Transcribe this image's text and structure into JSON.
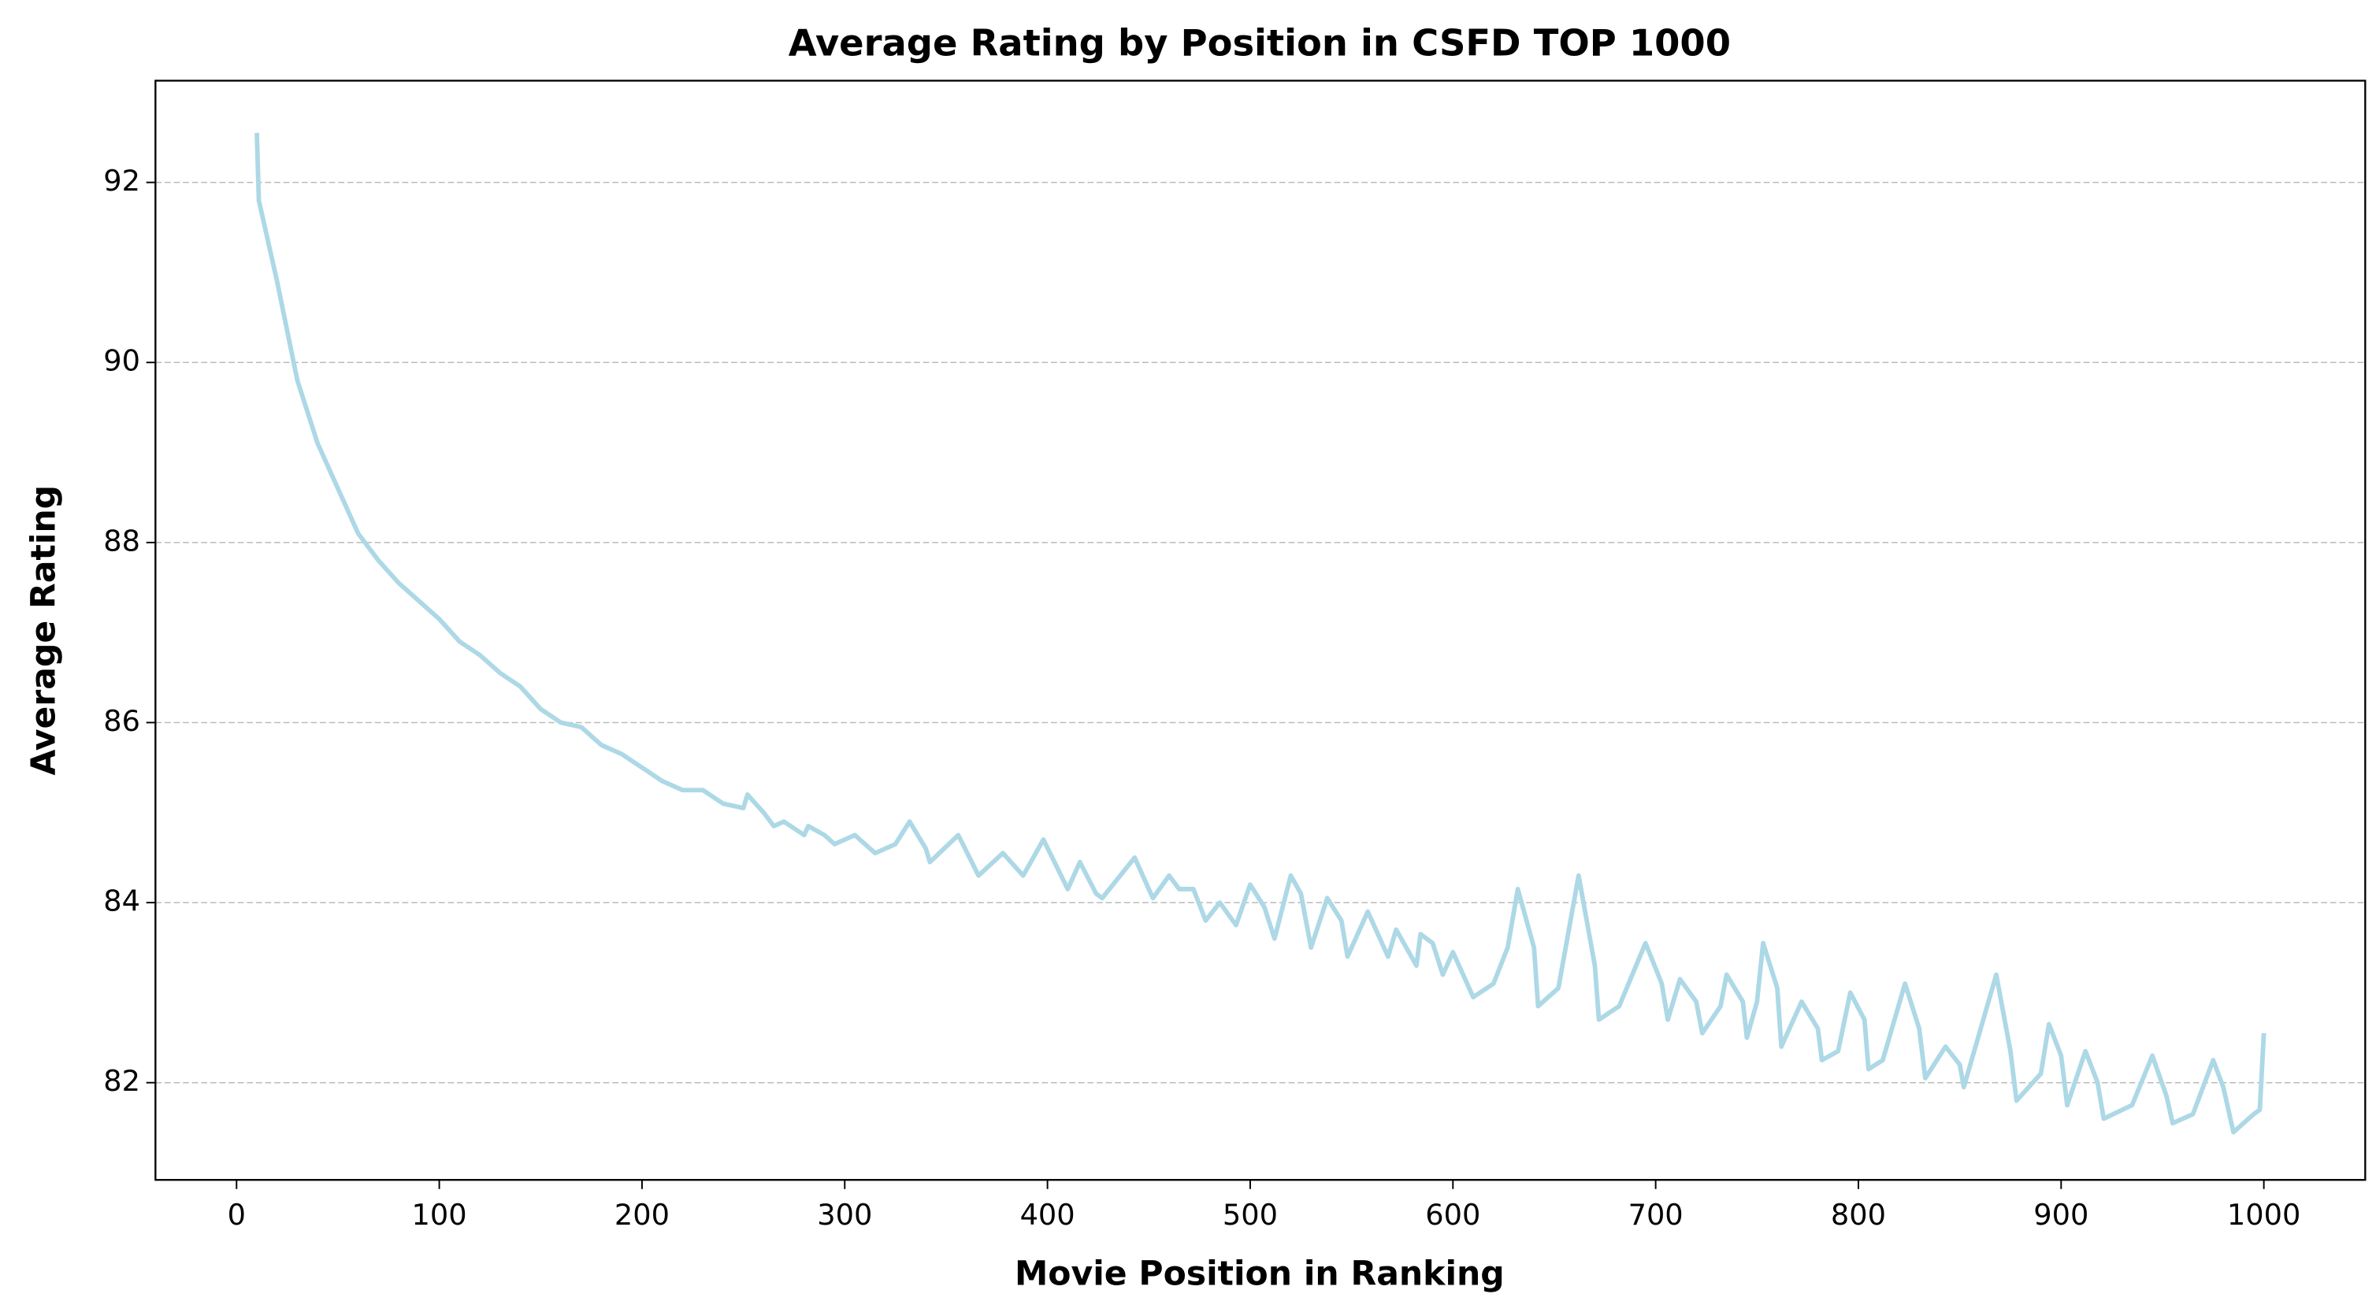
{
  "chart_data": {
    "type": "line",
    "title": "Average Rating by Position in CSFD TOP 1000",
    "x_label": "Movie Position in Ranking",
    "y_label": "Average Rating",
    "xlim": [
      -40,
      1050
    ],
    "ylim": [
      80.92,
      93.13
    ],
    "xticks": [
      0,
      100,
      200,
      300,
      400,
      500,
      600,
      700,
      800,
      900,
      1000
    ],
    "yticks": [
      82,
      84,
      86,
      88,
      90,
      92
    ],
    "grid": true,
    "x": [
      10,
      11,
      20,
      30,
      40,
      50,
      60,
      70,
      80,
      90,
      100,
      110,
      120,
      130,
      140,
      150,
      160,
      170,
      180,
      190,
      200,
      210,
      220,
      230,
      240,
      250,
      252,
      260,
      265,
      270,
      280,
      282,
      290,
      295,
      305,
      315,
      325,
      332,
      340,
      342,
      356,
      366,
      378,
      388,
      398,
      410,
      416,
      424,
      427,
      443,
      452,
      460,
      465,
      472,
      478,
      485,
      493,
      500,
      507,
      512,
      520,
      525,
      530,
      538,
      545,
      548,
      558,
      568,
      572,
      582,
      584,
      590,
      595,
      600,
      610,
      620,
      627,
      632,
      640,
      642,
      652,
      662,
      670,
      672,
      682,
      695,
      703,
      706,
      712,
      720,
      723,
      732,
      735,
      743,
      745,
      750,
      753,
      760,
      762,
      772,
      780,
      782,
      790,
      796,
      803,
      805,
      812,
      823,
      830,
      833,
      843,
      850,
      852,
      868,
      875,
      878,
      890,
      894,
      900,
      903,
      912,
      918,
      921,
      935,
      945,
      952,
      955,
      965,
      975,
      980,
      985,
      995,
      998,
      1000
    ],
    "series": [
      {
        "name": "Average Rating",
        "color": "#add8e6",
        "values": [
          92.55,
          91.8,
          90.9,
          89.8,
          89.1,
          88.6,
          88.1,
          87.8,
          87.55,
          87.35,
          87.15,
          86.9,
          86.75,
          86.55,
          86.4,
          86.15,
          86.0,
          85.95,
          85.75,
          85.65,
          85.5,
          85.35,
          85.25,
          85.25,
          85.1,
          85.05,
          85.2,
          85.0,
          84.85,
          84.9,
          84.75,
          84.85,
          84.75,
          84.65,
          84.75,
          84.55,
          84.65,
          84.9,
          84.6,
          84.45,
          84.75,
          84.3,
          84.55,
          84.3,
          84.7,
          84.15,
          84.45,
          84.1,
          84.05,
          84.5,
          84.05,
          84.3,
          84.15,
          84.15,
          83.8,
          84.0,
          83.75,
          84.2,
          83.95,
          83.6,
          84.3,
          84.1,
          83.5,
          84.05,
          83.8,
          83.4,
          83.9,
          83.4,
          83.7,
          83.3,
          83.65,
          83.55,
          83.2,
          83.45,
          82.95,
          83.1,
          83.5,
          84.15,
          83.5,
          82.85,
          83.05,
          84.3,
          83.3,
          82.7,
          82.85,
          83.55,
          83.1,
          82.7,
          83.15,
          82.9,
          82.55,
          82.85,
          83.2,
          82.9,
          82.5,
          82.9,
          83.55,
          83.05,
          82.4,
          82.9,
          82.6,
          82.25,
          82.35,
          83.0,
          82.7,
          82.15,
          82.25,
          83.1,
          82.6,
          82.05,
          82.4,
          82.2,
          81.95,
          83.2,
          82.35,
          81.8,
          82.1,
          82.65,
          82.3,
          81.75,
          82.35,
          82.0,
          81.6,
          81.75,
          82.3,
          81.85,
          81.55,
          81.65,
          82.25,
          81.95,
          81.45,
          81.65,
          81.7,
          82.55
        ]
      }
    ]
  }
}
